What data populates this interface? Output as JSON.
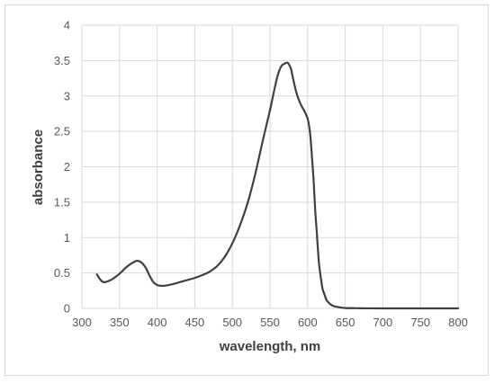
{
  "chart_data": {
    "type": "line",
    "title": "",
    "xlabel": "wavelength, nm",
    "ylabel": "absorbance",
    "xlim": [
      300,
      800
    ],
    "ylim": [
      0,
      4
    ],
    "x_ticks": [
      "300",
      "350",
      "400",
      "450",
      "500",
      "550",
      "600",
      "650",
      "700",
      "750",
      "800"
    ],
    "y_ticks": [
      "0",
      "0.5",
      "1",
      "1.5",
      "2",
      "2.5",
      "3",
      "3.5",
      "4"
    ],
    "grid": true,
    "legend": "none",
    "line_color": "#404040",
    "series": [
      {
        "x": [
          320,
          325,
          330,
          340,
          350,
          360,
          370,
          375,
          380,
          385,
          390,
          395,
          400,
          405,
          410,
          420,
          430,
          440,
          450,
          460,
          470,
          480,
          490,
          500,
          510,
          520,
          530,
          540,
          550,
          555,
          560,
          565,
          570,
          573,
          575,
          578,
          580,
          585,
          590,
          595,
          600,
          603,
          605,
          608,
          610,
          612,
          615,
          618,
          620,
          623,
          625,
          630,
          635,
          640,
          645,
          650,
          660,
          670,
          680,
          700,
          750,
          800
        ],
        "y": [
          0.48,
          0.4,
          0.37,
          0.41,
          0.49,
          0.59,
          0.66,
          0.67,
          0.64,
          0.57,
          0.46,
          0.37,
          0.33,
          0.32,
          0.32,
          0.34,
          0.37,
          0.4,
          0.43,
          0.47,
          0.52,
          0.6,
          0.73,
          0.92,
          1.17,
          1.48,
          1.88,
          2.35,
          2.8,
          3.05,
          3.28,
          3.42,
          3.46,
          3.47,
          3.45,
          3.38,
          3.28,
          3.05,
          2.9,
          2.8,
          2.68,
          2.5,
          2.25,
          1.8,
          1.4,
          1.1,
          0.65,
          0.4,
          0.27,
          0.18,
          0.12,
          0.06,
          0.03,
          0.02,
          0.01,
          0.005,
          0.003,
          0.002,
          0.001,
          0.0,
          0.0,
          0.0
        ]
      }
    ]
  }
}
